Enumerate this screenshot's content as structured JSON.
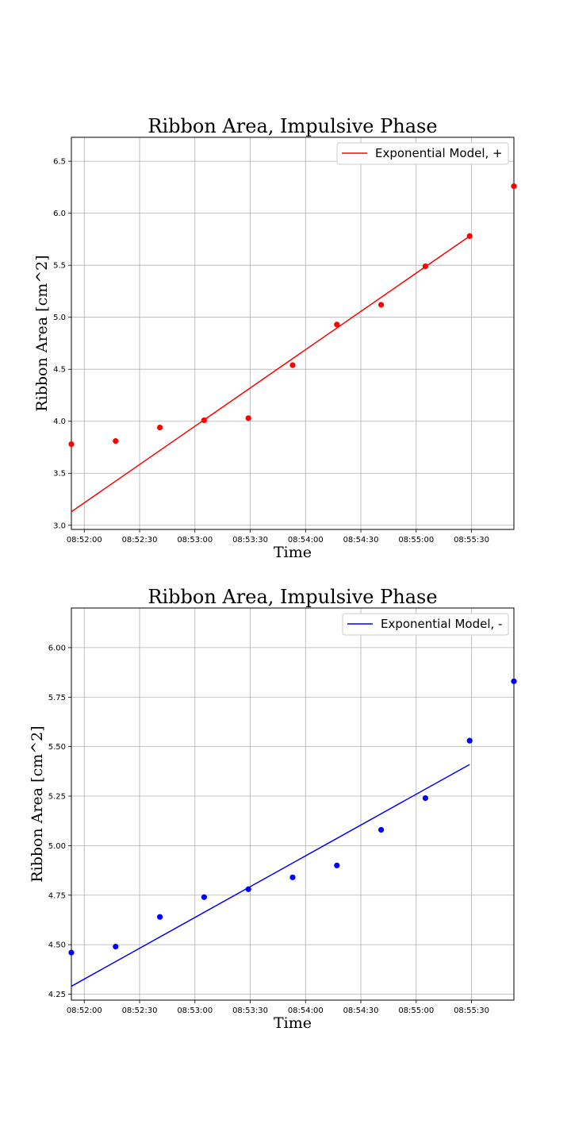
{
  "chart_data": [
    {
      "type": "scatter",
      "title": "Ribbon Area, Impulsive Phase",
      "xlabel": "Time",
      "ylabel": "Ribbon Area [cm^2]",
      "grid": true,
      "legend_position": "top-right",
      "x_tick_labels": [
        "08:52:00",
        "08:52:30",
        "08:53:00",
        "08:53:30",
        "08:54:00",
        "08:54:30",
        "08:55:00",
        "08:55:30"
      ],
      "x_tick_seconds": [
        120,
        150,
        180,
        210,
        240,
        270,
        300,
        330
      ],
      "xlim_seconds": [
        113,
        353
      ],
      "y_ticks": [
        3.0,
        3.5,
        4.0,
        4.5,
        5.0,
        5.5,
        6.0,
        6.5
      ],
      "y_tick_labels": [
        "3.0",
        "3.5",
        "4.0",
        "4.5",
        "5.0",
        "5.5",
        "6.0",
        "6.5"
      ],
      "ylim": [
        2.96,
        6.73
      ],
      "points": {
        "time": [
          "08:51:53",
          "08:52:17",
          "08:52:41",
          "08:53:05",
          "08:53:29",
          "08:53:53",
          "08:54:17",
          "08:54:41",
          "08:55:05",
          "08:55:29",
          "08:55:53"
        ],
        "x_seconds": [
          113,
          137,
          161,
          185,
          209,
          233,
          257,
          281,
          305,
          329,
          353
        ],
        "values": [
          3.78,
          3.81,
          3.94,
          4.01,
          4.03,
          4.54,
          4.93,
          5.12,
          5.49,
          5.78,
          6.26
        ]
      },
      "fit_line": {
        "name": "Exponential Model, +",
        "x_seconds": [
          113,
          329
        ],
        "values": [
          3.13,
          5.78
        ]
      },
      "color": "#ff0000"
    },
    {
      "type": "scatter",
      "title": "Ribbon Area, Impulsive Phase",
      "xlabel": "Time",
      "ylabel": "Ribbon Area [cm^2]",
      "grid": true,
      "legend_position": "top-right",
      "x_tick_labels": [
        "08:52:00",
        "08:52:30",
        "08:53:00",
        "08:53:30",
        "08:54:00",
        "08:54:30",
        "08:55:00",
        "08:55:30"
      ],
      "x_tick_seconds": [
        120,
        150,
        180,
        210,
        240,
        270,
        300,
        330
      ],
      "xlim_seconds": [
        113,
        353
      ],
      "y_ticks": [
        4.25,
        4.5,
        4.75,
        5.0,
        5.25,
        5.5,
        5.75,
        6.0
      ],
      "y_tick_labels": [
        "4.25",
        "4.50",
        "4.75",
        "5.00",
        "5.25",
        "5.50",
        "5.75",
        "6.00"
      ],
      "ylim": [
        4.22,
        6.2
      ],
      "points": {
        "time": [
          "08:51:53",
          "08:52:17",
          "08:52:41",
          "08:53:05",
          "08:53:29",
          "08:53:53",
          "08:54:17",
          "08:54:41",
          "08:55:05",
          "08:55:29",
          "08:55:53"
        ],
        "x_seconds": [
          113,
          137,
          161,
          185,
          209,
          233,
          257,
          281,
          305,
          329,
          353
        ],
        "values": [
          4.46,
          4.49,
          4.64,
          4.74,
          4.78,
          4.84,
          4.9,
          5.08,
          5.24,
          5.53,
          5.83
        ]
      },
      "fit_line": {
        "name": "Exponential Model, -",
        "x_seconds": [
          113,
          329
        ],
        "values": [
          4.29,
          5.41
        ]
      },
      "color": "#0000ff"
    }
  ]
}
